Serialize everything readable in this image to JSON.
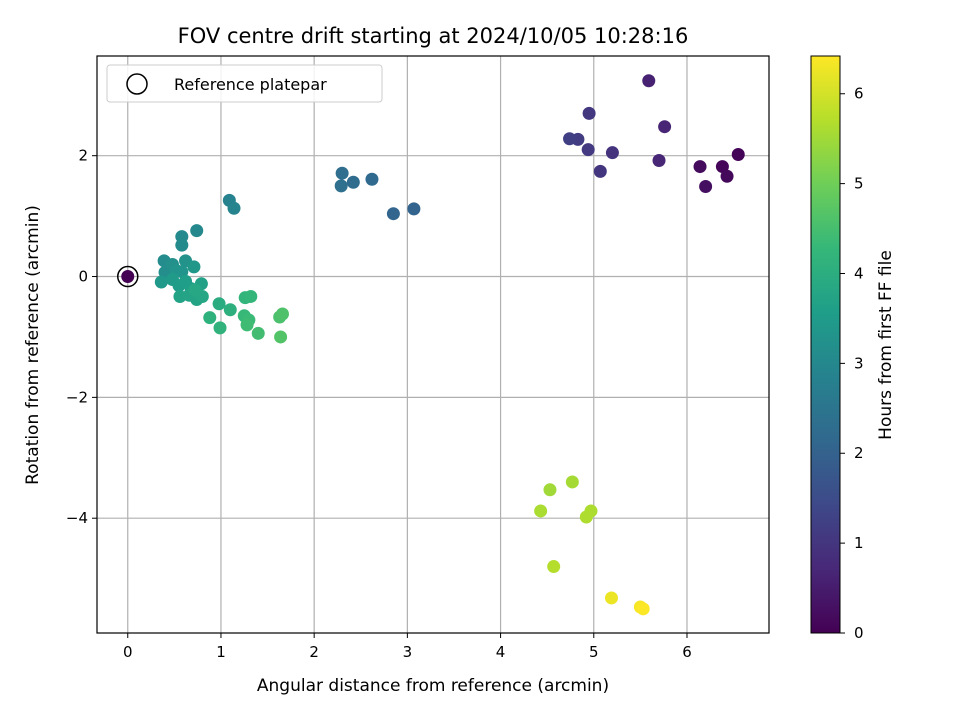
{
  "chart_data": {
    "type": "scatter",
    "title": "FOV centre drift starting at 2024/10/05 10:28:16",
    "xlabel": "Angular distance from reference (arcmin)",
    "ylabel": "Rotation from reference (arcmin)",
    "xlim": [
      -0.33,
      6.88
    ],
    "ylim": [
      -5.9,
      3.65
    ],
    "xticks": [
      0,
      1,
      2,
      3,
      4,
      5,
      6
    ],
    "yticks": [
      -4,
      -2,
      0,
      2
    ],
    "yticks_labels": [
      "−4",
      "−2",
      "0",
      "2"
    ],
    "grid": true,
    "colormap": "viridis",
    "colorbar": {
      "label": "Hours from first FF file",
      "range": [
        0,
        6.42
      ],
      "ticks": [
        0,
        1,
        2,
        3,
        4,
        5,
        6
      ],
      "stops": [
        "#440154",
        "#482878",
        "#3e4989",
        "#31688e",
        "#26828e",
        "#1f9e89",
        "#35b779",
        "#6ece58",
        "#b5de2b",
        "#fde725"
      ]
    },
    "legend": {
      "position": "upper-left",
      "entries": [
        {
          "label": "Reference platepar",
          "marker": "open-circle"
        }
      ]
    },
    "reference_point": {
      "x": 0,
      "y": 0
    },
    "points": [
      {
        "x": 0.0,
        "y": 0.0,
        "t": 0.0
      },
      {
        "x": 6.55,
        "y": 2.02,
        "t": 0.05
      },
      {
        "x": 6.38,
        "y": 1.82,
        "t": 0.1
      },
      {
        "x": 6.43,
        "y": 1.66,
        "t": 0.15
      },
      {
        "x": 6.14,
        "y": 1.82,
        "t": 0.2
      },
      {
        "x": 6.2,
        "y": 1.49,
        "t": 0.25
      },
      {
        "x": 5.59,
        "y": 3.24,
        "t": 0.6
      },
      {
        "x": 5.76,
        "y": 2.48,
        "t": 0.65
      },
      {
        "x": 5.7,
        "y": 1.92,
        "t": 0.7
      },
      {
        "x": 5.2,
        "y": 2.05,
        "t": 0.95
      },
      {
        "x": 5.07,
        "y": 1.74,
        "t": 1.0
      },
      {
        "x": 4.95,
        "y": 2.7,
        "t": 1.05
      },
      {
        "x": 4.94,
        "y": 2.1,
        "t": 1.1
      },
      {
        "x": 4.83,
        "y": 2.27,
        "t": 1.15
      },
      {
        "x": 4.74,
        "y": 2.28,
        "t": 1.2
      },
      {
        "x": 3.07,
        "y": 1.12,
        "t": 2.05
      },
      {
        "x": 2.85,
        "y": 1.04,
        "t": 2.1
      },
      {
        "x": 2.62,
        "y": 1.61,
        "t": 2.2
      },
      {
        "x": 2.42,
        "y": 1.56,
        "t": 2.25
      },
      {
        "x": 2.3,
        "y": 1.71,
        "t": 2.3
      },
      {
        "x": 2.29,
        "y": 1.5,
        "t": 2.35
      },
      {
        "x": 1.09,
        "y": 1.26,
        "t": 2.85
      },
      {
        "x": 1.14,
        "y": 1.13,
        "t": 2.9
      },
      {
        "x": 0.74,
        "y": 0.76,
        "t": 3.0
      },
      {
        "x": 0.58,
        "y": 0.66,
        "t": 3.05
      },
      {
        "x": 0.58,
        "y": 0.52,
        "t": 3.08
      },
      {
        "x": 0.39,
        "y": 0.26,
        "t": 3.1
      },
      {
        "x": 0.4,
        "y": 0.07,
        "t": 3.15
      },
      {
        "x": 0.48,
        "y": 0.2,
        "t": 3.2
      },
      {
        "x": 0.62,
        "y": 0.26,
        "t": 3.25
      },
      {
        "x": 0.52,
        "y": 0.1,
        "t": 3.3
      },
      {
        "x": 0.58,
        "y": 0.08,
        "t": 3.35
      },
      {
        "x": 0.71,
        "y": 0.16,
        "t": 3.4
      },
      {
        "x": 0.36,
        "y": -0.09,
        "t": 3.45
      },
      {
        "x": 0.48,
        "y": -0.05,
        "t": 3.5
      },
      {
        "x": 0.55,
        "y": -0.15,
        "t": 3.55
      },
      {
        "x": 0.62,
        "y": -0.08,
        "t": 3.58
      },
      {
        "x": 0.68,
        "y": -0.2,
        "t": 3.6
      },
      {
        "x": 0.79,
        "y": -0.12,
        "t": 3.65
      },
      {
        "x": 0.56,
        "y": -0.33,
        "t": 3.7
      },
      {
        "x": 0.66,
        "y": -0.31,
        "t": 3.72
      },
      {
        "x": 0.74,
        "y": -0.38,
        "t": 3.75
      },
      {
        "x": 0.8,
        "y": -0.33,
        "t": 3.8
      },
      {
        "x": 0.72,
        "y": -0.22,
        "t": 3.82
      },
      {
        "x": 0.98,
        "y": -0.45,
        "t": 3.95
      },
      {
        "x": 1.1,
        "y": -0.55,
        "t": 4.05
      },
      {
        "x": 0.88,
        "y": -0.68,
        "t": 4.1
      },
      {
        "x": 0.99,
        "y": -0.85,
        "t": 4.15
      },
      {
        "x": 1.26,
        "y": -0.35,
        "t": 4.2
      },
      {
        "x": 1.32,
        "y": -0.33,
        "t": 4.25
      },
      {
        "x": 1.25,
        "y": -0.65,
        "t": 4.3
      },
      {
        "x": 1.3,
        "y": -0.72,
        "t": 4.35
      },
      {
        "x": 1.28,
        "y": -0.8,
        "t": 4.4
      },
      {
        "x": 1.4,
        "y": -0.94,
        "t": 4.45
      },
      {
        "x": 1.63,
        "y": -0.67,
        "t": 4.55
      },
      {
        "x": 1.66,
        "y": -0.62,
        "t": 4.6
      },
      {
        "x": 1.64,
        "y": -1.0,
        "t": 4.65
      },
      {
        "x": 4.53,
        "y": -3.53,
        "t": 5.5
      },
      {
        "x": 4.77,
        "y": -3.4,
        "t": 5.55
      },
      {
        "x": 4.43,
        "y": -3.88,
        "t": 5.6
      },
      {
        "x": 4.97,
        "y": -3.88,
        "t": 5.62
      },
      {
        "x": 4.92,
        "y": -3.98,
        "t": 5.65
      },
      {
        "x": 4.57,
        "y": -4.8,
        "t": 5.7
      },
      {
        "x": 5.19,
        "y": -5.32,
        "t": 6.25
      },
      {
        "x": 5.5,
        "y": -5.47,
        "t": 6.35
      },
      {
        "x": 5.53,
        "y": -5.5,
        "t": 6.4
      }
    ]
  }
}
